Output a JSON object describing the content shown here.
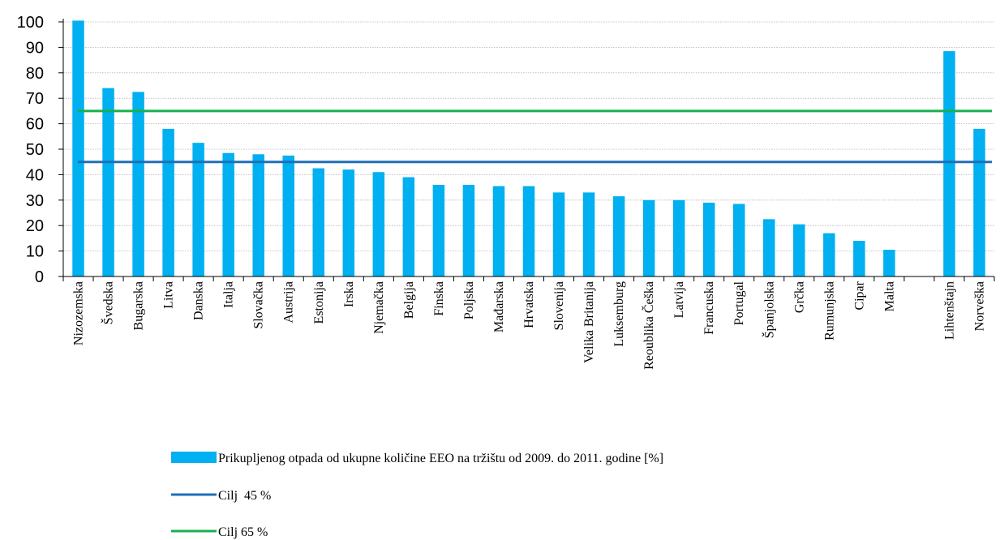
{
  "chart_data": {
    "type": "bar",
    "categories": [
      "Nizozemska",
      "Švedska",
      "Bugarska",
      "Litva",
      "Danska",
      "Italja",
      "Slovačka",
      "Austrija",
      "Estonija",
      "Irska",
      "Njemačka",
      "Belgija",
      "Finska",
      "Poljska",
      "Mađarska",
      "Hrvatska",
      "Slovenija",
      "Velika Britanija",
      "Luksemburg",
      "Reoublika Češka",
      "Latvija",
      "Francuska",
      "Portugal",
      "Španjolska",
      "Grčka",
      "Rumunjska",
      "Cipar",
      "Malta",
      "",
      "Lihtenštajn",
      "Norveška"
    ],
    "series": [
      {
        "name": "Prikupljenog otpada od ukupne količine EEO na tržištu od 2009. do 2011. godine [%]",
        "type": "bar",
        "color": "#00b0f0",
        "values": [
          100.5,
          74,
          72.5,
          58,
          52.5,
          48.5,
          48,
          47.5,
          42.5,
          42,
          41,
          39,
          36,
          36,
          35.5,
          35.5,
          33,
          33,
          31.5,
          30,
          30,
          29,
          28.5,
          22.5,
          20.5,
          17,
          14,
          10.5,
          null,
          88.5,
          58
        ]
      },
      {
        "name": "Cilj  45 %",
        "type": "line",
        "color": "#1f6fb8",
        "value": 45
      },
      {
        "name": "Cilj 65 %",
        "type": "line",
        "color": "#17b14f",
        "value": 65
      }
    ],
    "y_ticks": [
      "0",
      "10",
      "20",
      "30",
      "40",
      "50",
      "60",
      "70",
      "80",
      "90",
      "100"
    ],
    "ylim": [
      0,
      100
    ],
    "grid": true,
    "legend_position": "bottom"
  }
}
